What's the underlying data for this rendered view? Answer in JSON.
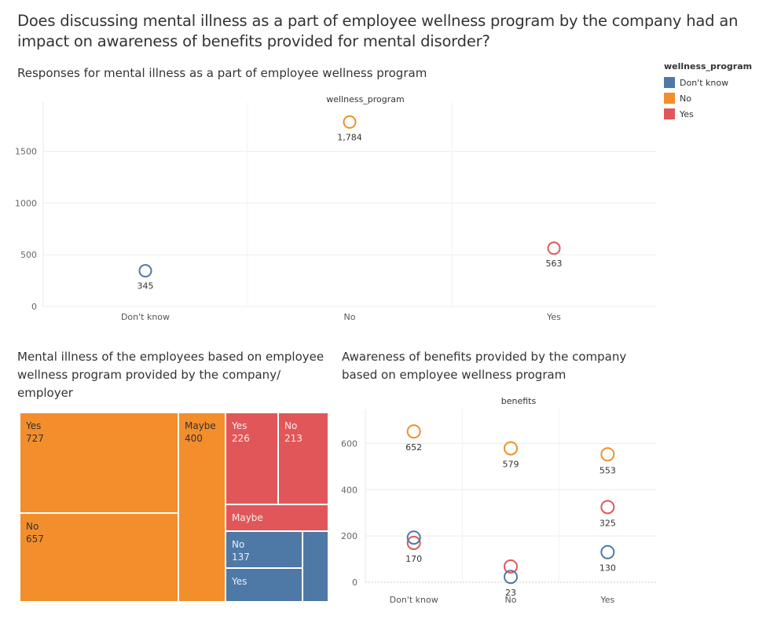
{
  "page": {
    "title": "Does discussing mental illness as a part of employee wellness program by the company had an impact on awareness of benefits provided for mental disorder?"
  },
  "legend": {
    "title": "wellness_program",
    "items": [
      {
        "label": "Don't know",
        "color": "#4e79a7"
      },
      {
        "label": "No",
        "color": "#f28e2b"
      },
      {
        "label": "Yes",
        "color": "#e15759"
      }
    ]
  },
  "chart_data": [
    {
      "type": "scatter",
      "title": "Responses for mental illness as a part of employee wellness program",
      "header": "wellness_program",
      "categories": [
        "Don't know",
        "No",
        "Yes"
      ],
      "points": [
        {
          "category": "Don't know",
          "value": 345,
          "label": "345",
          "color": "#4e79a7"
        },
        {
          "category": "No",
          "value": 1784,
          "label": "1,784",
          "color": "#f28e2b"
        },
        {
          "category": "Yes",
          "value": 563,
          "label": "563",
          "color": "#e15759"
        }
      ],
      "yticks": [
        "0",
        "500",
        "1000",
        "1500"
      ],
      "ylim": [
        0,
        1900
      ],
      "grid": true
    },
    {
      "type": "treemap",
      "title": "Mental illness of the employees based on employee wellness program provided by the company/ employer",
      "cells": [
        {
          "group": "No",
          "label": "Yes",
          "value": "727",
          "color": "#f28e2b"
        },
        {
          "group": "No",
          "label": "No",
          "value": "657",
          "color": "#f28e2b"
        },
        {
          "group": "No",
          "label": "Maybe",
          "value": "400",
          "color": "#f28e2b"
        },
        {
          "group": "Yes",
          "label": "Yes",
          "value": "226",
          "color": "#e15759"
        },
        {
          "group": "Yes",
          "label": "No",
          "value": "213",
          "color": "#e15759"
        },
        {
          "group": "Yes",
          "label": "Maybe",
          "value": "",
          "color": "#e15759"
        },
        {
          "group": "Don't know",
          "label": "No",
          "value": "137",
          "color": "#4e79a7"
        },
        {
          "group": "Don't know",
          "label": "Yes",
          "value": "",
          "color": "#4e79a7"
        },
        {
          "group": "Don't know",
          "label": "",
          "value": "",
          "color": "#4e79a7"
        }
      ]
    },
    {
      "type": "scatter",
      "title": "Awareness of benefits provided by the company based on employee wellness program",
      "header": "benefits",
      "categories": [
        "Don't know",
        "No",
        "Yes"
      ],
      "series": [
        {
          "name": "No",
          "color": "#f28e2b",
          "values": [
            652,
            579,
            553
          ],
          "labels": [
            "652",
            "579",
            "553"
          ]
        },
        {
          "name": "Yes",
          "color": "#e15759",
          "values": [
            170,
            68,
            325
          ],
          "labels": [
            "170",
            "",
            "325"
          ]
        },
        {
          "name": "Don't know",
          "color": "#4e79a7",
          "values": [
            193,
            23,
            130
          ],
          "labels": [
            "",
            "23",
            "130"
          ]
        }
      ],
      "yticks": [
        "0",
        "200",
        "400",
        "600"
      ],
      "ylim": [
        0,
        700
      ],
      "grid": true
    }
  ]
}
